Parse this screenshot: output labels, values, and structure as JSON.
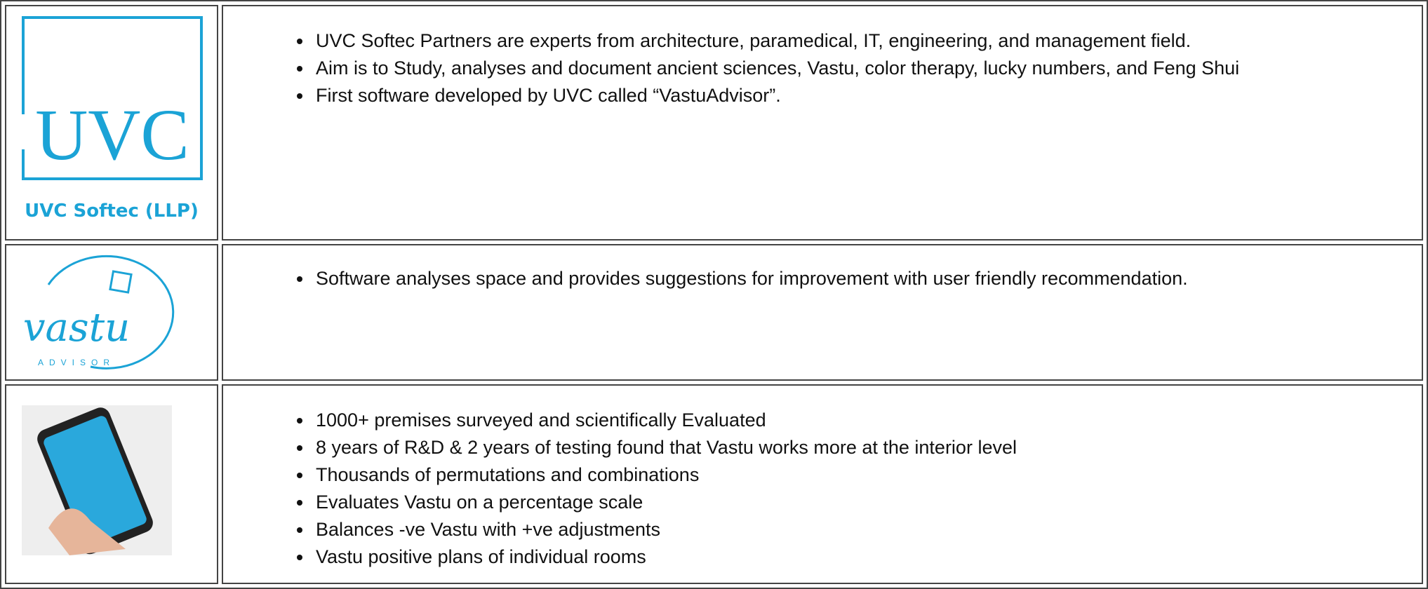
{
  "rows": [
    {
      "logo": {
        "mark": "UVC",
        "caption": "UVC Softec (LLP)"
      },
      "bullets": [
        "UVC Softec Partners are experts from architecture, paramedical, IT, engineering, and management field.",
        "Aim is to Study, analyses and document ancient sciences, Vastu, color therapy, lucky numbers, and Feng Shui",
        "First software developed by UVC called “VastuAdvisor”."
      ]
    },
    {
      "logo": {
        "mark": "vastu",
        "caption": "ADVISOR"
      },
      "bullets": [
        "Software analyses space and provides suggestions for improvement with user friendly recommendation."
      ]
    },
    {
      "bullets": [
        "1000+ premises surveyed and scientifically Evaluated",
        "8 years of R&D & 2 years of testing found that Vastu works more at the interior level",
        "Thousands of permutations and combinations",
        "Evaluates Vastu on a percentage scale",
        "Balances -ve Vastu with +ve adjustments",
        "Vastu positive plans of individual rooms"
      ]
    }
  ]
}
